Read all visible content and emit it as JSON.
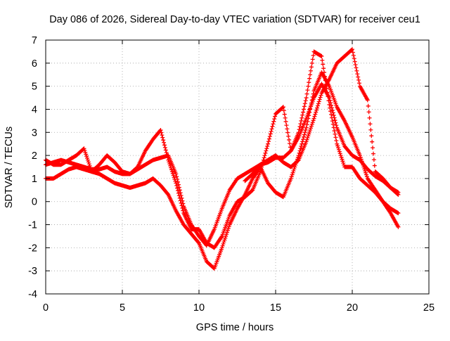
{
  "chart_data": {
    "type": "scatter",
    "title": "Day 086 of 2026, Sidereal Day-to-day VTEC variation (SDTVAR) for receiver ceu1",
    "xlabel": "GPS time / hours",
    "ylabel": "SDTVAR / TECUs",
    "xlim": [
      0,
      25
    ],
    "ylim": [
      -4,
      7
    ],
    "xticks": [
      0,
      5,
      10,
      15,
      20,
      25
    ],
    "yticks": [
      -4,
      -3,
      -2,
      -1,
      0,
      1,
      2,
      3,
      4,
      5,
      6,
      7
    ],
    "grid": true,
    "legend": "none",
    "marker": "+",
    "color": "#ff0000",
    "series": [
      {
        "x": [
          0.0,
          0.5,
          1.0,
          1.5,
          2.0,
          2.5,
          3.0,
          3.5,
          4.0,
          4.5,
          5.0,
          5.5,
          6.0,
          6.5,
          7.0,
          7.5,
          8.0,
          8.5,
          9.0,
          9.5,
          10.0,
          10.5,
          11.0,
          11.5,
          12.0,
          12.5,
          13.0,
          13.5,
          14.0,
          14.5,
          15.0,
          15.5,
          16.0,
          16.5,
          17.0,
          17.5,
          18.0,
          18.5,
          19.0,
          19.5,
          20.0,
          20.5,
          21.0,
          21.5,
          22.0,
          22.5,
          23.0
        ],
        "y": [
          1.6,
          1.7,
          1.8,
          1.7,
          1.6,
          1.5,
          1.4,
          1.4,
          1.5,
          1.3,
          1.2,
          1.2,
          1.4,
          1.6,
          1.8,
          1.9,
          2.0,
          1.2,
          -0.2,
          -1.0,
          -1.5,
          -1.9,
          -1.2,
          -0.3,
          0.5,
          1.0,
          1.2,
          1.4,
          1.6,
          1.7,
          1.9,
          1.9,
          2.2,
          2.8,
          3.6,
          4.5,
          5.1,
          4.5,
          3.2,
          2.4,
          2.0,
          1.8,
          1.4,
          1.1,
          0.9,
          0.6,
          0.3
        ]
      },
      {
        "x": [
          0.0,
          0.5,
          1.0,
          1.5,
          2.0,
          2.5,
          3.0,
          3.5,
          4.0,
          4.5,
          5.0,
          5.5,
          6.0,
          6.5,
          7.0,
          7.5,
          8.0,
          8.5,
          9.0,
          9.5,
          10.0,
          10.5,
          11.0,
          11.5,
          12.0,
          12.5,
          13.0,
          13.5,
          14.0,
          14.5,
          15.0,
          15.5,
          16.0,
          16.5,
          17.0,
          17.5,
          18.0,
          18.5,
          19.0,
          19.5,
          20.0,
          20.5,
          21.0,
          21.5,
          22.0,
          22.5,
          23.0
        ],
        "y": [
          1.0,
          1.0,
          1.2,
          1.4,
          1.5,
          1.4,
          1.3,
          1.2,
          1.0,
          0.8,
          0.7,
          0.6,
          0.7,
          0.8,
          1.0,
          0.7,
          0.3,
          -0.4,
          -1.0,
          -1.4,
          -1.8,
          -2.6,
          -2.9,
          -2.0,
          -1.0,
          -0.3,
          0.3,
          1.0,
          1.5,
          0.8,
          0.4,
          0.2,
          1.0,
          2.0,
          3.2,
          4.8,
          5.6,
          5.0,
          4.1,
          3.5,
          2.8,
          2.0,
          1.0,
          0.5,
          0.0,
          -0.5,
          -1.1
        ]
      },
      {
        "x": [
          0.0,
          0.5,
          1.0,
          1.5,
          2.0,
          2.5,
          3.0,
          3.5,
          4.0,
          4.5,
          5.0,
          5.5,
          6.0,
          6.5,
          7.0,
          7.5,
          8.0,
          8.5,
          9.0,
          9.5,
          10.0,
          10.5,
          11.0,
          11.5,
          12.0,
          12.5,
          13.0,
          13.5,
          14.0,
          14.5,
          15.0,
          15.5,
          16.0,
          16.5,
          17.0,
          17.5,
          18.0,
          18.5,
          19.0,
          19.5,
          20.0,
          20.5,
          21.0,
          21.5,
          22.0,
          22.5,
          23.0
        ],
        "y": [
          1.8,
          1.6,
          1.6,
          1.8,
          2.0,
          2.3,
          1.3,
          1.6,
          2.0,
          1.7,
          1.3,
          1.2,
          1.5,
          2.2,
          2.7,
          3.1,
          1.8,
          0.8,
          -0.5,
          -1.2,
          -1.2,
          -1.8,
          -2.0,
          -1.5,
          -0.6,
          0.0,
          0.2,
          0.5,
          1.3,
          2.5,
          3.8,
          4.1,
          2.2,
          3.0,
          4.5,
          6.5,
          6.3,
          4.2,
          2.5,
          1.5,
          1.5,
          1.0,
          0.7,
          0.4,
          0.0,
          -0.3,
          -0.5
        ]
      },
      {
        "x": [
          13.0,
          13.5,
          14.0,
          14.5,
          15.0,
          15.5,
          16.0,
          16.5,
          17.0,
          17.5,
          18.0,
          18.5,
          19.0,
          19.5,
          20.0,
          20.5,
          21.0,
          21.5,
          22.0,
          22.5,
          23.0
        ],
        "y": [
          0.9,
          1.2,
          1.6,
          1.8,
          2.0,
          1.7,
          1.5,
          1.8,
          2.6,
          3.6,
          4.7,
          5.3,
          6.0,
          6.3,
          6.6,
          5.0,
          4.4,
          1.3,
          1.0,
          0.6,
          0.4
        ]
      }
    ]
  }
}
